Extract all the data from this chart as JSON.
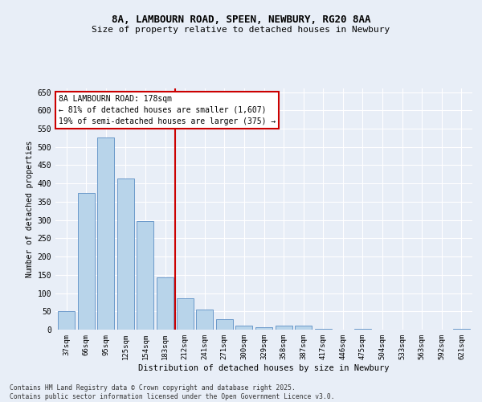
{
  "title1": "8A, LAMBOURN ROAD, SPEEN, NEWBURY, RG20 8AA",
  "title2": "Size of property relative to detached houses in Newbury",
  "xlabel": "Distribution of detached houses by size in Newbury",
  "ylabel": "Number of detached properties",
  "categories": [
    "37sqm",
    "66sqm",
    "95sqm",
    "125sqm",
    "154sqm",
    "183sqm",
    "212sqm",
    "241sqm",
    "271sqm",
    "300sqm",
    "329sqm",
    "358sqm",
    "387sqm",
    "417sqm",
    "446sqm",
    "475sqm",
    "504sqm",
    "533sqm",
    "563sqm",
    "592sqm",
    "621sqm"
  ],
  "values": [
    50,
    375,
    525,
    413,
    298,
    143,
    85,
    55,
    28,
    10,
    7,
    10,
    11,
    2,
    0,
    3,
    0,
    1,
    0,
    1,
    2
  ],
  "bar_color": "#b8d4ea",
  "bar_edge_color": "#5b8ec4",
  "vline_x": 5.5,
  "vline_color": "#cc0000",
  "annotation_line1": "8A LAMBOURN ROAD: 178sqm",
  "annotation_line2": "← 81% of detached houses are smaller (1,607)",
  "annotation_line3": "19% of semi-detached houses are larger (375) →",
  "ylim_max": 660,
  "yticks": [
    0,
    50,
    100,
    150,
    200,
    250,
    300,
    350,
    400,
    450,
    500,
    550,
    600,
    650
  ],
  "footer": "Contains HM Land Registry data © Crown copyright and database right 2025.\nContains public sector information licensed under the Open Government Licence v3.0.",
  "bg_color": "#e8eef7",
  "grid_color": "#ffffff"
}
